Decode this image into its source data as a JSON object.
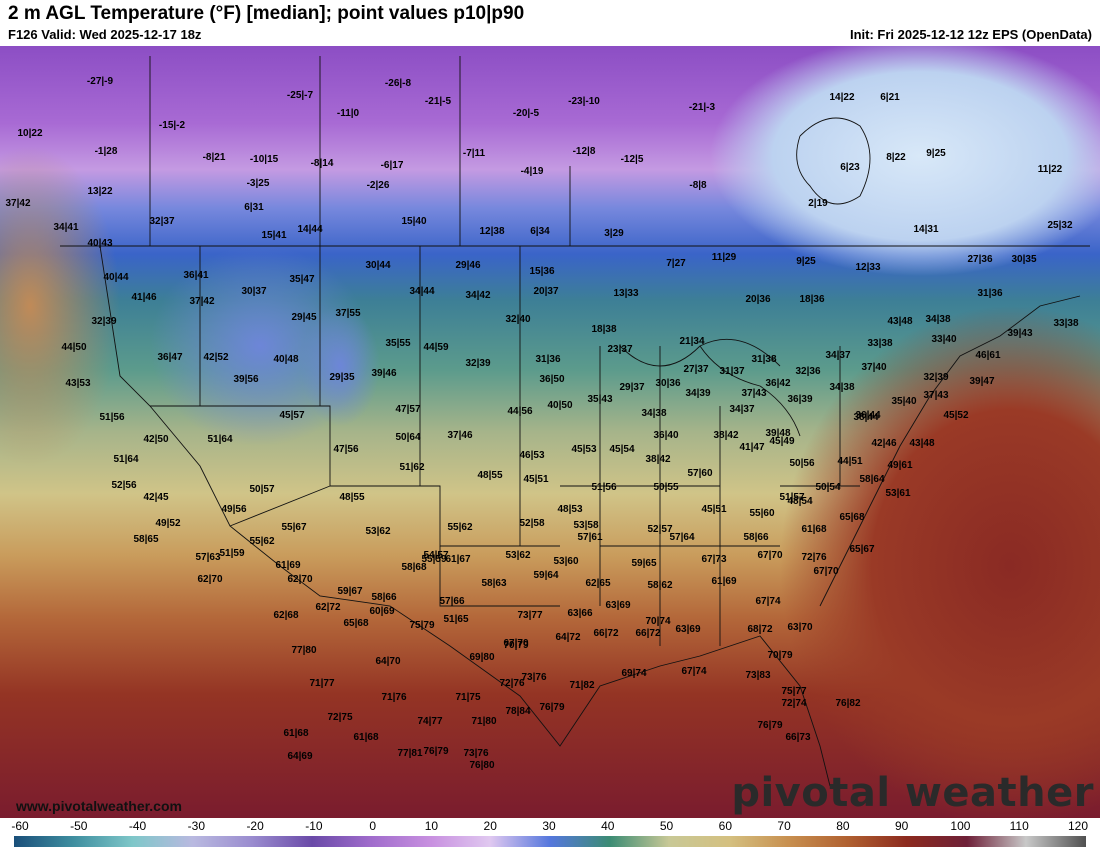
{
  "header": {
    "title": "2 m AGL Temperature (°F) [median]; point values p10|p90",
    "valid": "F126 Valid: Wed 2025-12-17 18z",
    "init": "Init: Fri 2025-12-12 12z EPS (OpenData)"
  },
  "footer": {
    "website": "www.pivotalweather.com",
    "brand": "pivotal weather"
  },
  "colorbar": {
    "ticks": [
      "-60",
      "-50",
      "-40",
      "-30",
      "-20",
      "-10",
      "0",
      "10",
      "20",
      "30",
      "40",
      "50",
      "60",
      "70",
      "80",
      "90",
      "100",
      "110",
      "120"
    ],
    "stops": [
      "#1a4f7a",
      "#3f8fa0",
      "#7fc7c9",
      "#b9b9e0",
      "#9a8ccf",
      "#6a4aa8",
      "#a06ccc",
      "#c890e0",
      "#e0c8f0",
      "#5577dd",
      "#3c8c74",
      "#c8c896",
      "#d4c080",
      "#c89050",
      "#b06030",
      "#8c2a1e",
      "#6e2038",
      "#c8c8c8",
      "#505050"
    ]
  },
  "points": [
    {
      "label": "-27|-9",
      "color": "#000"
    },
    {
      "label": "-25|-7",
      "color": "#000"
    },
    {
      "label": "-26|-8",
      "color": "#000"
    },
    {
      "label": "-21|-5",
      "color": "#000"
    },
    {
      "label": "-23|-10",
      "color": "#000"
    },
    {
      "label": "-21|-3",
      "color": "#000"
    },
    {
      "label": "14|22",
      "color": "#000"
    },
    {
      "label": "6|21",
      "color": "#000"
    },
    {
      "label": "10|22",
      "color": "#000"
    },
    {
      "label": "-15|-2",
      "color": "#000"
    },
    {
      "label": "-11|0",
      "color": "#000"
    },
    {
      "label": "-20|-5",
      "color": "#000"
    },
    {
      "label": "-1|28",
      "color": "#000"
    },
    {
      "label": "-8|21",
      "color": "#000"
    },
    {
      "label": "-10|15",
      "color": "#000"
    },
    {
      "label": "-8|14",
      "color": "#000"
    },
    {
      "label": "-6|17",
      "color": "#000"
    },
    {
      "label": "-7|11",
      "color": "#000"
    },
    {
      "label": "-12|8",
      "color": "#000"
    },
    {
      "label": "-12|5",
      "color": "#000"
    },
    {
      "label": "6|23",
      "color": "#000"
    },
    {
      "label": "8|22",
      "color": "#000"
    },
    {
      "label": "9|25",
      "color": "#000"
    },
    {
      "label": "11|22",
      "color": "#000"
    },
    {
      "label": "13|22",
      "color": "#000"
    },
    {
      "label": "-3|25",
      "color": "#000"
    },
    {
      "label": "-2|26",
      "color": "#000"
    },
    {
      "label": "-4|19",
      "color": "#000"
    },
    {
      "label": "-8|8",
      "color": "#000"
    },
    {
      "label": "2|19",
      "color": "#000"
    },
    {
      "label": "37|42",
      "color": "#000"
    },
    {
      "label": "6|31",
      "color": "#000"
    },
    {
      "label": "32|37",
      "color": "#000"
    },
    {
      "label": "34|41",
      "color": "#000"
    },
    {
      "label": "15|41",
      "color": "#000"
    },
    {
      "label": "14|44",
      "color": "#000"
    },
    {
      "label": "15|40",
      "color": "#000"
    },
    {
      "label": "12|38",
      "color": "#000"
    },
    {
      "label": "6|34",
      "color": "#000"
    },
    {
      "label": "3|29",
      "color": "#000"
    },
    {
      "label": "14|31",
      "color": "#000"
    },
    {
      "label": "25|32",
      "color": "#000"
    },
    {
      "label": "40|43",
      "color": "#000"
    },
    {
      "label": "7|27",
      "color": "#000"
    },
    {
      "label": "11|29",
      "color": "#000"
    },
    {
      "label": "9|25",
      "color": "#000"
    },
    {
      "label": "12|33",
      "color": "#000"
    },
    {
      "label": "27|36",
      "color": "#000"
    },
    {
      "label": "30|35",
      "color": "#000"
    },
    {
      "label": "40|44",
      "color": "#000"
    },
    {
      "label": "36|41",
      "color": "#000"
    },
    {
      "label": "30|44",
      "color": "#000"
    },
    {
      "label": "29|46",
      "color": "#000"
    },
    {
      "label": "15|36",
      "color": "#000"
    },
    {
      "label": "35|47",
      "color": "#000"
    },
    {
      "label": "34|44",
      "color": "#000"
    },
    {
      "label": "34|42",
      "color": "#000"
    },
    {
      "label": "20|37",
      "color": "#000"
    },
    {
      "label": "13|33",
      "color": "#000"
    },
    {
      "label": "20|36",
      "color": "#000"
    },
    {
      "label": "18|36",
      "color": "#000"
    },
    {
      "label": "31|36",
      "color": "#000"
    },
    {
      "label": "41|46",
      "color": "#000"
    },
    {
      "label": "30|37",
      "color": "#000"
    },
    {
      "label": "37|42",
      "color": "#000"
    },
    {
      "label": "29|45",
      "color": "#000"
    },
    {
      "label": "37|55",
      "color": "#000"
    },
    {
      "label": "32|40",
      "color": "#000"
    },
    {
      "label": "18|38",
      "color": "#000"
    },
    {
      "label": "43|48",
      "color": "#000"
    },
    {
      "label": "34|38",
      "color": "#000"
    },
    {
      "label": "33|38",
      "color": "#000"
    },
    {
      "label": "39|43",
      "color": "#000"
    },
    {
      "label": "32|39",
      "color": "#000"
    },
    {
      "label": "44|50",
      "color": "#000"
    },
    {
      "label": "36|47",
      "color": "#000"
    },
    {
      "label": "42|52",
      "color": "#000"
    },
    {
      "label": "40|48",
      "color": "#000"
    },
    {
      "label": "35|55",
      "color": "#000"
    },
    {
      "label": "44|59",
      "color": "#000"
    },
    {
      "label": "21|34",
      "color": "#000"
    },
    {
      "label": "23|37",
      "color": "#000"
    },
    {
      "label": "31|38",
      "color": "#000"
    },
    {
      "label": "34|37",
      "color": "#000"
    },
    {
      "label": "33|38",
      "color": "#000"
    },
    {
      "label": "33|40",
      "color": "#000"
    },
    {
      "label": "46|61",
      "color": "#000"
    },
    {
      "label": "32|39",
      "color": "#000"
    },
    {
      "label": "31|36",
      "color": "#000"
    },
    {
      "label": "37|40",
      "color": "#000"
    },
    {
      "label": "32|39",
      "color": "#000"
    },
    {
      "label": "39|47",
      "color": "#000"
    },
    {
      "label": "43|53",
      "color": "#000"
    },
    {
      "label": "39|56",
      "color": "#000"
    },
    {
      "label": "29|35",
      "color": "#000"
    },
    {
      "label": "39|46",
      "color": "#000"
    },
    {
      "label": "36|50",
      "color": "#000"
    },
    {
      "label": "27|37",
      "color": "#000"
    },
    {
      "label": "31|37",
      "color": "#000"
    },
    {
      "label": "36|42",
      "color": "#000"
    },
    {
      "label": "32|36",
      "color": "#000"
    },
    {
      "label": "34|38",
      "color": "#000"
    },
    {
      "label": "37|43",
      "color": "#000"
    },
    {
      "label": "29|37",
      "color": "#000"
    },
    {
      "label": "30|36",
      "color": "#000"
    },
    {
      "label": "34|39",
      "color": "#000"
    },
    {
      "label": "36|39",
      "color": "#000"
    },
    {
      "label": "35|40",
      "color": "#000"
    },
    {
      "label": "36|44",
      "color": "#000"
    },
    {
      "label": "51|56",
      "color": "#000"
    },
    {
      "label": "45|57",
      "color": "#000"
    },
    {
      "label": "47|57",
      "color": "#000"
    },
    {
      "label": "44|56",
      "color": "#000"
    },
    {
      "label": "40|50",
      "color": "#000"
    },
    {
      "label": "35|43",
      "color": "#000"
    },
    {
      "label": "34|38",
      "color": "#000"
    },
    {
      "label": "34|37",
      "color": "#000"
    },
    {
      "label": "38|44",
      "color": "#000"
    },
    {
      "label": "37|43",
      "color": "#000"
    },
    {
      "label": "45|52",
      "color": "#000"
    },
    {
      "label": "42|50",
      "color": "#000"
    },
    {
      "label": "51|64",
      "color": "#000"
    },
    {
      "label": "50|64",
      "color": "#000"
    },
    {
      "label": "37|46",
      "color": "#000"
    },
    {
      "label": "36|40",
      "color": "#000"
    },
    {
      "label": "38|42",
      "color": "#000"
    },
    {
      "label": "39|48",
      "color": "#000"
    },
    {
      "label": "42|46",
      "color": "#000"
    },
    {
      "label": "43|48",
      "color": "#000"
    },
    {
      "label": "47|56",
      "color": "#000"
    },
    {
      "label": "46|53",
      "color": "#000"
    },
    {
      "label": "45|53",
      "color": "#000"
    },
    {
      "label": "45|54",
      "color": "#000"
    },
    {
      "label": "38|42",
      "color": "#000"
    },
    {
      "label": "41|47",
      "color": "#000"
    },
    {
      "label": "45|49",
      "color": "#000"
    },
    {
      "label": "50|56",
      "color": "#000"
    },
    {
      "label": "44|51",
      "color": "#000"
    },
    {
      "label": "49|61",
      "color": "#000"
    },
    {
      "label": "51|64",
      "color": "#000"
    },
    {
      "label": "51|62",
      "color": "#000"
    },
    {
      "label": "48|55",
      "color": "#000"
    },
    {
      "label": "45|51",
      "color": "#000"
    },
    {
      "label": "57|60",
      "color": "#000"
    },
    {
      "label": "51|57",
      "color": "#000"
    },
    {
      "label": "52|56",
      "color": "#000"
    },
    {
      "label": "42|45",
      "color": "#000"
    },
    {
      "label": "50|57",
      "color": "#000"
    },
    {
      "label": "48|55",
      "color": "#000"
    },
    {
      "label": "51|56",
      "color": "#000"
    },
    {
      "label": "50|55",
      "color": "#000"
    },
    {
      "label": "50|54",
      "color": "#000"
    },
    {
      "label": "58|64",
      "color": "#000"
    },
    {
      "label": "53|61",
      "color": "#000"
    },
    {
      "label": "49|56",
      "color": "#000"
    },
    {
      "label": "48|53",
      "color": "#000"
    },
    {
      "label": "45|51",
      "color": "#000"
    },
    {
      "label": "55|60",
      "color": "#000"
    },
    {
      "label": "48|54",
      "color": "#000"
    },
    {
      "label": "49|52",
      "color": "#000"
    },
    {
      "label": "55|67",
      "color": "#000"
    },
    {
      "label": "53|62",
      "color": "#000"
    },
    {
      "label": "55|62",
      "color": "#000"
    },
    {
      "label": "52|58",
      "color": "#000"
    },
    {
      "label": "53|58",
      "color": "#000"
    },
    {
      "label": "52|57",
      "color": "#000"
    },
    {
      "label": "61|68",
      "color": "#000"
    },
    {
      "label": "65|68",
      "color": "#000"
    },
    {
      "label": "58|65",
      "color": "#000"
    },
    {
      "label": "55|62",
      "color": "#000"
    },
    {
      "label": "51|59",
      "color": "#000"
    },
    {
      "label": "54|57",
      "color": "#000"
    },
    {
      "label": "55|59",
      "color": "#000"
    },
    {
      "label": "57|61",
      "color": "#000"
    },
    {
      "label": "57|64",
      "color": "#000"
    },
    {
      "label": "58|66",
      "color": "#000"
    },
    {
      "label": "72|76",
      "color": "#000"
    },
    {
      "label": "65|67",
      "color": "#000"
    },
    {
      "label": "57|63",
      "color": "#000"
    },
    {
      "label": "61|69",
      "color": "#000"
    },
    {
      "label": "58|68",
      "color": "#000"
    },
    {
      "label": "61|67",
      "color": "#000"
    },
    {
      "label": "53|62",
      "color": "#000"
    },
    {
      "label": "53|60",
      "color": "#000"
    },
    {
      "label": "59|65",
      "color": "#000"
    },
    {
      "label": "67|73",
      "color": "#000"
    },
    {
      "label": "67|70",
      "color": "#000"
    },
    {
      "label": "67|70",
      "color": "#000"
    },
    {
      "label": "62|70",
      "color": "#000"
    },
    {
      "label": "62|70",
      "color": "#000"
    },
    {
      "label": "59|67",
      "color": "#000"
    },
    {
      "label": "58|66",
      "color": "#000"
    },
    {
      "label": "57|66",
      "color": "#000"
    },
    {
      "label": "58|63",
      "color": "#000"
    },
    {
      "label": "59|64",
      "color": "#000"
    },
    {
      "label": "62|65",
      "color": "#000"
    },
    {
      "label": "58|62",
      "color": "#000"
    },
    {
      "label": "61|69",
      "color": "#000"
    },
    {
      "label": "67|74",
      "color": "#000"
    },
    {
      "label": "62|72",
      "color": "#000"
    },
    {
      "label": "60|69",
      "color": "#000"
    },
    {
      "label": "51|65",
      "color": "#000"
    },
    {
      "label": "73|77",
      "color": "#000"
    },
    {
      "label": "63|66",
      "color": "#000"
    },
    {
      "label": "63|69",
      "color": "#000"
    },
    {
      "label": "66|72",
      "color": "#000"
    },
    {
      "label": "68|72",
      "color": "#000"
    },
    {
      "label": "63|69",
      "color": "#000"
    },
    {
      "label": "63|70",
      "color": "#000"
    },
    {
      "label": "62|68",
      "color": "#000"
    },
    {
      "label": "65|68",
      "color": "#000"
    },
    {
      "label": "75|79",
      "color": "#000"
    },
    {
      "label": "67|70",
      "color": "#000"
    },
    {
      "label": "64|72",
      "color": "#000"
    },
    {
      "label": "66|72",
      "color": "#000"
    },
    {
      "label": "70|74",
      "color": "#000"
    },
    {
      "label": "77|80",
      "color": "#000"
    },
    {
      "label": "64|70",
      "color": "#000"
    },
    {
      "label": "69|80",
      "color": "#000"
    },
    {
      "label": "70|79",
      "color": "#000"
    },
    {
      "label": "70|79",
      "color": "#000"
    },
    {
      "label": "71|77",
      "color": "#000"
    },
    {
      "label": "71|76",
      "color": "#000"
    },
    {
      "label": "71|75",
      "color": "#000"
    },
    {
      "label": "72|76",
      "color": "#000"
    },
    {
      "label": "73|76",
      "color": "#000"
    },
    {
      "label": "71|82",
      "color": "#000"
    },
    {
      "label": "69|74",
      "color": "#000"
    },
    {
      "label": "67|74",
      "color": "#000"
    },
    {
      "label": "73|83",
      "color": "#000"
    },
    {
      "label": "75|77",
      "color": "#000"
    },
    {
      "label": "72|75",
      "color": "#000"
    },
    {
      "label": "74|77",
      "color": "#000"
    },
    {
      "label": "71|80",
      "color": "#000"
    },
    {
      "label": "78|84",
      "color": "#000"
    },
    {
      "label": "76|82",
      "color": "#000"
    },
    {
      "label": "72|74",
      "color": "#000"
    },
    {
      "label": "76|79",
      "color": "#000"
    },
    {
      "label": "61|68",
      "color": "#000"
    },
    {
      "label": "61|68",
      "color": "#000"
    },
    {
      "label": "76|79",
      "color": "#000"
    },
    {
      "label": "76|79",
      "color": "#000"
    },
    {
      "label": "73|76",
      "color": "#000"
    },
    {
      "label": "64|69",
      "color": "#000"
    },
    {
      "label": "77|81",
      "color": "#000"
    },
    {
      "label": "76|80",
      "color": "#000"
    },
    {
      "label": "66|73",
      "color": "#000"
    }
  ]
}
